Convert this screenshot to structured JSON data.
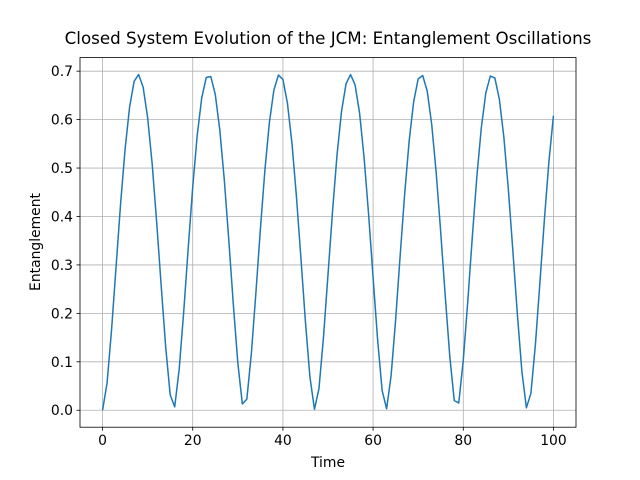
{
  "chart_data": {
    "type": "line",
    "title": "Closed System Evolution of the JCM: Entanglement Oscillations",
    "x_label": "Time",
    "y_label": "Entanglement",
    "color": "#1f77b4",
    "grid": true,
    "xlim": [
      -5,
      105
    ],
    "ylim": [
      -0.035,
      0.728
    ],
    "xticks": [
      0,
      20,
      40,
      60,
      80,
      100
    ],
    "yticks": [
      {
        "value": 0,
        "label": "0.0"
      },
      0.1,
      0.2,
      0.3,
      0.4,
      0.5,
      0.6,
      0.7
    ],
    "x": [
      0,
      1,
      2,
      3,
      4,
      5,
      6,
      7,
      8,
      9,
      10,
      11,
      12,
      13,
      14,
      15,
      16,
      17,
      18,
      19,
      20,
      21,
      22,
      23,
      24,
      25,
      26,
      27,
      28,
      29,
      30,
      31,
      32,
      33,
      34,
      35,
      36,
      37,
      38,
      39,
      40,
      41,
      42,
      43,
      44,
      45,
      46,
      47,
      48,
      49,
      50,
      51,
      52,
      53,
      54,
      55,
      56,
      57,
      58,
      59,
      60,
      61,
      62,
      63,
      64,
      65,
      66,
      67,
      68,
      69,
      70,
      71,
      72,
      73,
      74,
      75,
      76,
      77,
      78,
      79,
      80,
      81,
      82,
      83,
      84,
      85,
      86,
      87,
      88,
      89,
      90,
      91,
      92,
      93,
      94,
      95,
      96,
      97,
      98,
      99,
      100
    ],
    "values": [
      0,
      0.056,
      0.166,
      0.296,
      0.426,
      0.539,
      0.626,
      0.679,
      0.693,
      0.667,
      0.604,
      0.509,
      0.389,
      0.258,
      0.131,
      0.032,
      0.007,
      0.085,
      0.203,
      0.335,
      0.461,
      0.568,
      0.645,
      0.687,
      0.689,
      0.652,
      0.579,
      0.476,
      0.351,
      0.219,
      0.098,
      0.013,
      0.023,
      0.117,
      0.241,
      0.373,
      0.495,
      0.594,
      0.661,
      0.692,
      0.683,
      0.634,
      0.552,
      0.441,
      0.313,
      0.182,
      0.068,
      0.002,
      0.045,
      0.151,
      0.28,
      0.41,
      0.527,
      0.617,
      0.674,
      0.693,
      0.672,
      0.614,
      0.522,
      0.405,
      0.274,
      0.146,
      0.041,
      0.003,
      0.072,
      0.187,
      0.319,
      0.446,
      0.556,
      0.637,
      0.684,
      0.691,
      0.659,
      0.59,
      0.49,
      0.367,
      0.236,
      0.112,
      0.02,
      0.015,
      0.103,
      0.225,
      0.357,
      0.481,
      0.583,
      0.655,
      0.69,
      0.686,
      0.642,
      0.564,
      0.456,
      0.329,
      0.198,
      0.08,
      0.005,
      0.035,
      0.136,
      0.264,
      0.395,
      0.514,
      0.608
    ]
  }
}
